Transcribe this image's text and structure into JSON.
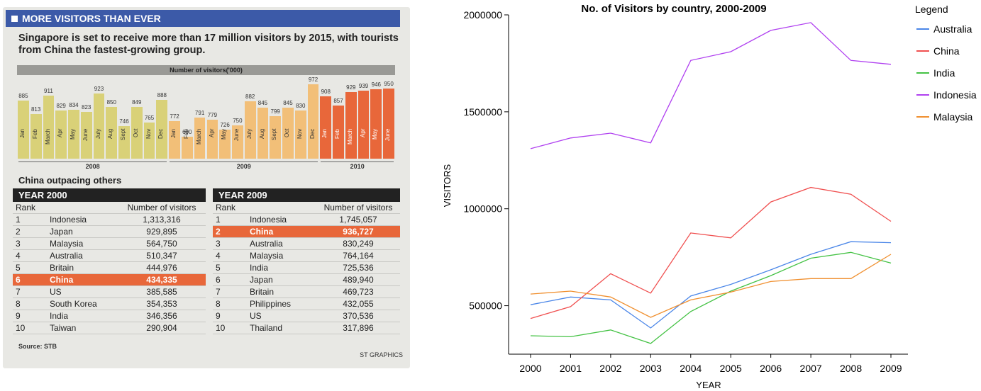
{
  "infographic": {
    "banner": "MORE VISITORS THAN EVER",
    "headline": "Singapore is set to receive more than 17 million visitors by 2015, with tourists from China the fastest-growing group.",
    "bar_chart_title": "Number of visitors('000)",
    "colors": {
      "y2008": "#d9d178",
      "y2009": "#f2bf78",
      "y2010": "#e8673a",
      "highlight": "#e8673a"
    },
    "monthly": [
      {
        "month": "Jan",
        "value": 885,
        "year": "2008"
      },
      {
        "month": "Feb",
        "value": 813,
        "year": "2008"
      },
      {
        "month": "March",
        "value": 911,
        "year": "2008"
      },
      {
        "month": "Apr",
        "value": 829,
        "year": "2008"
      },
      {
        "month": "May",
        "value": 834,
        "year": "2008"
      },
      {
        "month": "June",
        "value": 823,
        "year": "2008"
      },
      {
        "month": "July",
        "value": 923,
        "year": "2008"
      },
      {
        "month": "Aug",
        "value": 850,
        "year": "2008"
      },
      {
        "month": "Sept",
        "value": 746,
        "year": "2008"
      },
      {
        "month": "Oct",
        "value": 849,
        "year": "2008"
      },
      {
        "month": "Nov",
        "value": 765,
        "year": "2008"
      },
      {
        "month": "Dec",
        "value": 888,
        "year": "2008"
      },
      {
        "month": "Jan",
        "value": 772,
        "year": "2009"
      },
      {
        "month": "Feb",
        "value": 690,
        "year": "2009"
      },
      {
        "month": "March",
        "value": 791,
        "year": "2009"
      },
      {
        "month": "Apr",
        "value": 779,
        "year": "2009"
      },
      {
        "month": "May",
        "value": 726,
        "year": "2009"
      },
      {
        "month": "June",
        "value": 750,
        "year": "2009"
      },
      {
        "month": "July",
        "value": 882,
        "year": "2009"
      },
      {
        "month": "Aug",
        "value": 845,
        "year": "2009"
      },
      {
        "month": "Sept",
        "value": 799,
        "year": "2009"
      },
      {
        "month": "Oct",
        "value": 845,
        "year": "2009"
      },
      {
        "month": "Nov",
        "value": 830,
        "year": "2009"
      },
      {
        "month": "Dec",
        "value": 972,
        "year": "2009"
      },
      {
        "month": "Jan",
        "value": 908,
        "year": "2010"
      },
      {
        "month": "Feb",
        "value": 857,
        "year": "2010"
      },
      {
        "month": "March",
        "value": 929,
        "year": "2010"
      },
      {
        "month": "Apr",
        "value": 939,
        "year": "2010"
      },
      {
        "month": "May",
        "value": 946,
        "year": "2010"
      },
      {
        "month": "June",
        "value": 950,
        "year": "2010"
      }
    ],
    "year_labels": [
      "2008",
      "2009",
      "2010"
    ],
    "section_title": "China outpacing others",
    "col_rank": "Rank",
    "col_visitors": "Number of visitors",
    "table_2000": {
      "title": "YEAR 2000",
      "rows": [
        {
          "rank": "1",
          "country": "Indonesia",
          "visitors": "1,313,316"
        },
        {
          "rank": "2",
          "country": "Japan",
          "visitors": "929,895"
        },
        {
          "rank": "3",
          "country": "Malaysia",
          "visitors": "564,750"
        },
        {
          "rank": "4",
          "country": "Australia",
          "visitors": "510,347"
        },
        {
          "rank": "5",
          "country": "Britain",
          "visitors": "444,976"
        },
        {
          "rank": "6",
          "country": "China",
          "visitors": "434,335",
          "highlight": true
        },
        {
          "rank": "7",
          "country": "US",
          "visitors": "385,585"
        },
        {
          "rank": "8",
          "country": "South Korea",
          "visitors": "354,353"
        },
        {
          "rank": "9",
          "country": "India",
          "visitors": "346,356"
        },
        {
          "rank": "10",
          "country": "Taiwan",
          "visitors": "290,904"
        }
      ]
    },
    "table_2009": {
      "title": "YEAR 2009",
      "rows": [
        {
          "rank": "1",
          "country": "Indonesia",
          "visitors": "1,745,057"
        },
        {
          "rank": "2",
          "country": "China",
          "visitors": "936,727",
          "highlight": true
        },
        {
          "rank": "3",
          "country": "Australia",
          "visitors": "830,249"
        },
        {
          "rank": "4",
          "country": "Malaysia",
          "visitors": "764,164"
        },
        {
          "rank": "5",
          "country": "India",
          "visitors": "725,536"
        },
        {
          "rank": "6",
          "country": "Japan",
          "visitors": "489,940"
        },
        {
          "rank": "7",
          "country": "Britain",
          "visitors": "469,723"
        },
        {
          "rank": "8",
          "country": "Philippines",
          "visitors": "432,055"
        },
        {
          "rank": "9",
          "country": "US",
          "visitors": "370,536"
        },
        {
          "rank": "10",
          "country": "Thailand",
          "visitors": "317,896"
        }
      ]
    },
    "source": "Source: STB",
    "credit": "ST GRAPHICS"
  },
  "chart_data": {
    "type": "line",
    "title": "No. of Visitors by country, 2000-2009",
    "xlabel": "YEAR",
    "ylabel": "VISITORS",
    "x": [
      2000,
      2001,
      2002,
      2003,
      2004,
      2005,
      2006,
      2007,
      2008,
      2009
    ],
    "yticks": [
      500000,
      1000000,
      1500000,
      2000000
    ],
    "ylim": [
      250000,
      2000000
    ],
    "legend_title": "Legend",
    "legend_placement": "top-right",
    "series": [
      {
        "name": "Australia",
        "color": "#4a86e8",
        "values": [
          505000,
          545000,
          530000,
          385000,
          550000,
          610000,
          685000,
          765000,
          830000,
          825000
        ]
      },
      {
        "name": "China",
        "color": "#f05050",
        "values": [
          434000,
          495000,
          665000,
          565000,
          875000,
          850000,
          1035000,
          1110000,
          1075000,
          935000
        ]
      },
      {
        "name": "India",
        "color": "#44c244",
        "values": [
          345000,
          340000,
          375000,
          305000,
          470000,
          575000,
          655000,
          745000,
          775000,
          720000
        ]
      },
      {
        "name": "Indonesia",
        "color": "#b040f0",
        "values": [
          1310000,
          1365000,
          1390000,
          1340000,
          1765000,
          1810000,
          1920000,
          1960000,
          1765000,
          1745000
        ]
      },
      {
        "name": "Malaysia",
        "color": "#f09030",
        "values": [
          560000,
          575000,
          545000,
          440000,
          530000,
          570000,
          625000,
          640000,
          640000,
          765000
        ]
      }
    ]
  }
}
